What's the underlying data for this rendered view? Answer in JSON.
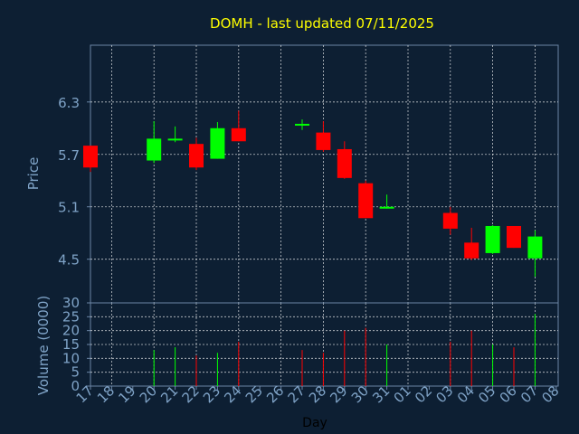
{
  "colors": {
    "background": "#0d1f33",
    "axis": "#6b86a6",
    "grid": "#ffffff",
    "title": "#ffff00",
    "label": "#7fa3c7",
    "up": "#00ff00",
    "down": "#ff0000"
  },
  "chart_data": [
    {
      "type": "candlestick",
      "title": "DOMH - last updated 07/11/2025",
      "ylabel": "Price",
      "xlabel": "Day",
      "ylim": [
        4.0,
        6.95
      ],
      "yticks": [
        "6.3",
        "5.7",
        "5.1",
        "4.5"
      ],
      "yticks_values": [
        6.3,
        5.7,
        5.1,
        4.5
      ],
      "grid": true,
      "categories": [
        "17",
        "18",
        "19",
        "20",
        "21",
        "22",
        "23",
        "24",
        "25",
        "26",
        "27",
        "28",
        "29",
        "30",
        "31",
        "01",
        "02",
        "03",
        "04",
        "05",
        "06",
        "07",
        "08"
      ],
      "candles": [
        {
          "x": "17",
          "open": 5.8,
          "high": 5.8,
          "low": 5.5,
          "close": 5.55
        },
        {
          "x": "20",
          "open": 5.63,
          "high": 6.08,
          "low": 5.6,
          "close": 5.88
        },
        {
          "x": "21",
          "open": 5.86,
          "high": 6.02,
          "low": 5.84,
          "close": 5.88
        },
        {
          "x": "22",
          "open": 5.82,
          "high": 5.89,
          "low": 5.52,
          "close": 5.55
        },
        {
          "x": "23",
          "open": 5.65,
          "high": 6.07,
          "low": 5.65,
          "close": 6.0
        },
        {
          "x": "24",
          "open": 6.0,
          "high": 6.2,
          "low": 5.85,
          "close": 5.85
        },
        {
          "x": "27",
          "open": 6.05,
          "high": 6.1,
          "low": 5.98,
          "close": 6.05
        },
        {
          "x": "28",
          "open": 5.95,
          "high": 6.08,
          "low": 5.73,
          "close": 5.75
        },
        {
          "x": "29",
          "open": 5.76,
          "high": 5.85,
          "low": 5.42,
          "close": 5.43
        },
        {
          "x": "30",
          "open": 5.37,
          "high": 5.4,
          "low": 4.97,
          "close": 4.97
        },
        {
          "x": "31",
          "open": 5.09,
          "high": 5.24,
          "low": 5.08,
          "close": 5.1
        },
        {
          "x": "03",
          "open": 5.03,
          "high": 5.1,
          "low": 4.78,
          "close": 4.85
        },
        {
          "x": "04",
          "open": 4.69,
          "high": 4.86,
          "low": 4.49,
          "close": 4.51
        },
        {
          "x": "05",
          "open": 4.57,
          "high": 4.89,
          "low": 4.56,
          "close": 4.88
        },
        {
          "x": "06",
          "open": 4.88,
          "high": 4.88,
          "low": 4.63,
          "close": 4.63
        },
        {
          "x": "07",
          "open": 4.51,
          "high": 4.83,
          "low": 4.3,
          "close": 4.76
        }
      ]
    },
    {
      "type": "bar",
      "ylabel": "Volume (0000)",
      "ylim": [
        0,
        30
      ],
      "yticks": [
        0,
        5,
        10,
        15,
        20,
        25,
        30
      ],
      "grid": true,
      "categories": [
        "17",
        "18",
        "19",
        "20",
        "21",
        "22",
        "23",
        "24",
        "25",
        "26",
        "27",
        "28",
        "29",
        "30",
        "31",
        "01",
        "02",
        "03",
        "04",
        "05",
        "06",
        "07",
        "08"
      ],
      "bars": [
        {
          "x": "20",
          "value": 13,
          "direction": "up"
        },
        {
          "x": "21",
          "value": 14,
          "direction": "up"
        },
        {
          "x": "22",
          "value": 11,
          "direction": "down"
        },
        {
          "x": "23",
          "value": 12,
          "direction": "up"
        },
        {
          "x": "24",
          "value": 16,
          "direction": "down"
        },
        {
          "x": "27",
          "value": 13,
          "direction": "down"
        },
        {
          "x": "28",
          "value": 12,
          "direction": "down"
        },
        {
          "x": "29",
          "value": 20,
          "direction": "down"
        },
        {
          "x": "30",
          "value": 21,
          "direction": "down"
        },
        {
          "x": "31",
          "value": 15,
          "direction": "up"
        },
        {
          "x": "03",
          "value": 16,
          "direction": "down"
        },
        {
          "x": "04",
          "value": 20,
          "direction": "down"
        },
        {
          "x": "05",
          "value": 15,
          "direction": "up"
        },
        {
          "x": "06",
          "value": 14,
          "direction": "down"
        },
        {
          "x": "07",
          "value": 26,
          "direction": "up"
        }
      ]
    }
  ]
}
